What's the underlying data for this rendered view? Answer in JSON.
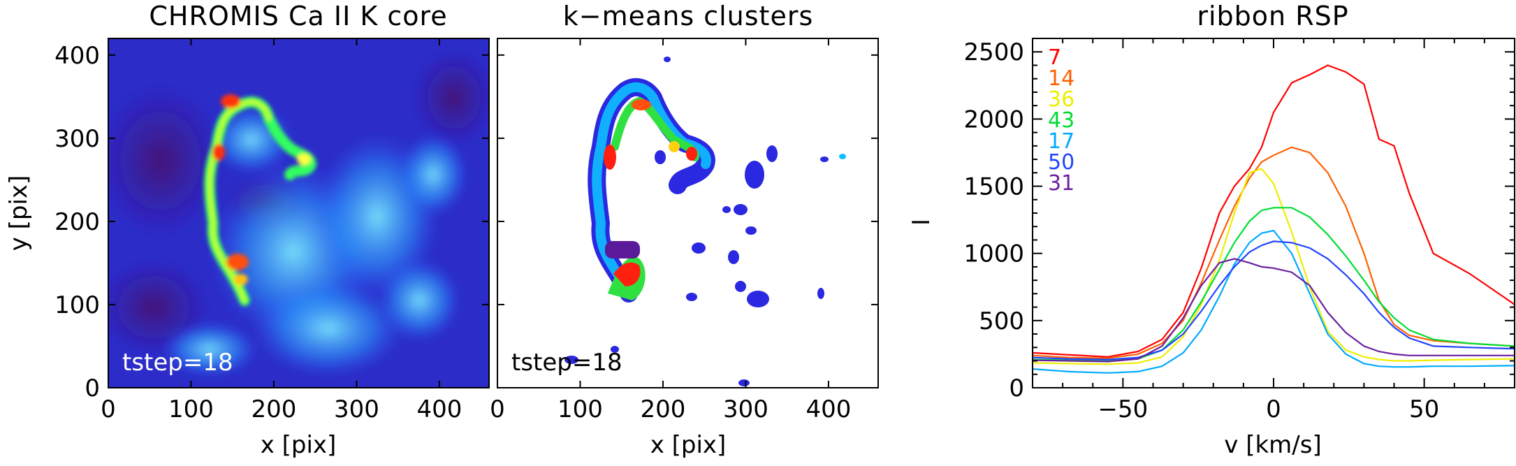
{
  "colors": {
    "spectra": [
      "#ff0000",
      "#ff6000",
      "#eeee00",
      "#00dd33",
      "#00aaff",
      "#2244ff",
      "#6a1fa0"
    ],
    "image_background": "#2c1aa0",
    "ribbon_highlight": "#ff3000"
  },
  "chart_data": [
    {
      "type": "heatmap",
      "title": "CHROMIS Ca II K core",
      "xlabel": "x [pix]",
      "ylabel": "y [pix]",
      "xlim": [
        0,
        460
      ],
      "ylim": [
        0,
        420
      ],
      "xticks": [
        "0",
        "100",
        "200",
        "300",
        "400"
      ],
      "yticks": [
        "0",
        "100",
        "200",
        "300",
        "400"
      ],
      "annotation": "tstep=18",
      "colormap": "rainbow"
    },
    {
      "type": "heatmap",
      "title": "k−means clusters",
      "xlabel": "x [pix]",
      "ylabel": "",
      "xlim": [
        0,
        460
      ],
      "ylim": [
        0,
        420
      ],
      "xticks": [
        "0",
        "100",
        "200",
        "300",
        "400"
      ],
      "annotation": "tstep=18",
      "colormap": "rainbow"
    },
    {
      "type": "line",
      "title": "ribbon RSP",
      "xlabel": "v [km/s]",
      "ylabel": "I",
      "xlim": [
        -80,
        80
      ],
      "ylim": [
        0,
        2600
      ],
      "xticks": [
        "−50",
        "0",
        "50"
      ],
      "yticks": [
        "0",
        "500",
        "1000",
        "1500",
        "2000",
        "2500"
      ],
      "x": [
        -80,
        -68,
        -55,
        -45,
        -37,
        -30,
        -24,
        -18,
        -13,
        -8,
        -4,
        0,
        6,
        12,
        18,
        24,
        30,
        35,
        40,
        45,
        53,
        65,
        80
      ],
      "series": [
        {
          "name": "7",
          "values": [
            260,
            245,
            230,
            270,
            360,
            560,
            890,
            1300,
            1500,
            1630,
            1790,
            2050,
            2270,
            2330,
            2400,
            2350,
            2260,
            1850,
            1800,
            1450,
            1000,
            850,
            620
          ]
        },
        {
          "name": "14",
          "values": [
            240,
            225,
            220,
            250,
            330,
            500,
            780,
            1100,
            1350,
            1560,
            1680,
            1730,
            1790,
            1750,
            1600,
            1350,
            1000,
            650,
            470,
            390,
            350,
            330,
            310
          ]
        },
        {
          "name": "36",
          "values": [
            185,
            180,
            175,
            185,
            230,
            380,
            620,
            950,
            1300,
            1600,
            1630,
            1520,
            1160,
            750,
            420,
            280,
            230,
            210,
            200,
            200,
            205,
            210,
            215
          ]
        },
        {
          "name": "43",
          "values": [
            210,
            205,
            200,
            215,
            280,
            430,
            640,
            880,
            1080,
            1240,
            1320,
            1340,
            1340,
            1270,
            1140,
            980,
            800,
            640,
            520,
            430,
            360,
            330,
            310
          ]
        },
        {
          "name": "17",
          "values": [
            140,
            120,
            110,
            120,
            160,
            260,
            430,
            680,
            920,
            1080,
            1150,
            1170,
            1000,
            700,
            400,
            250,
            180,
            160,
            155,
            155,
            160,
            160,
            165
          ]
        },
        {
          "name": "50",
          "values": [
            225,
            215,
            210,
            225,
            280,
            400,
            570,
            760,
            900,
            1010,
            1060,
            1090,
            1080,
            1040,
            960,
            840,
            700,
            560,
            450,
            370,
            310,
            300,
            290
          ]
        },
        {
          "name": "31",
          "values": [
            205,
            200,
            195,
            215,
            310,
            520,
            760,
            930,
            960,
            930,
            900,
            890,
            860,
            760,
            560,
            410,
            310,
            270,
            250,
            240,
            240,
            240,
            240
          ]
        }
      ]
    }
  ]
}
